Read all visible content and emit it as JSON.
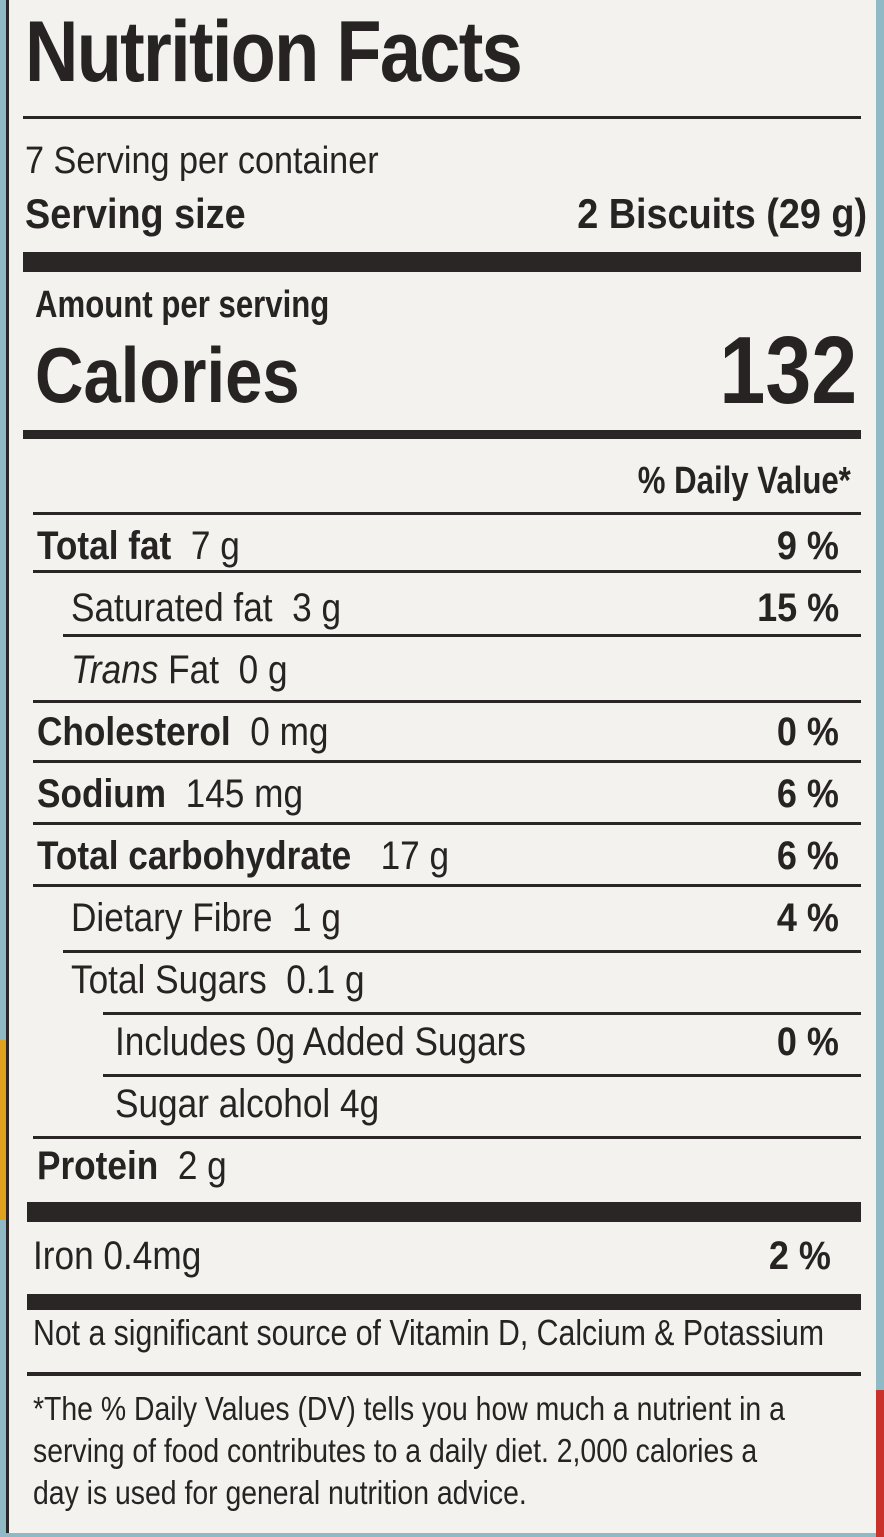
{
  "title": "Nutrition Facts",
  "servings_per_container": "7 Serving per container",
  "serving_size": {
    "label": "Serving size",
    "value": "2 Biscuits (29 g)"
  },
  "amount_per_serving": "Amount per serving",
  "calories": {
    "label": "Calories",
    "value": "132"
  },
  "daily_value_header": "% Daily Value*",
  "nutrients": [
    {
      "name": "Total fat",
      "amount": "7 g",
      "dv": "9 %"
    },
    {
      "name": "Saturated fat",
      "amount": "3 g",
      "dv": "15 %"
    },
    {
      "name": "Trans",
      "name_rest": "Fat",
      "amount": "0 g",
      "dv": ""
    },
    {
      "name": "Cholesterol",
      "amount": "0 mg",
      "dv": "0 %"
    },
    {
      "name": "Sodium",
      "amount": "145 mg",
      "dv": "6 %"
    },
    {
      "name": "Total carbohydrate",
      "amount": "17 g",
      "dv": "6 %"
    },
    {
      "name": "Dietary Fibre",
      "amount": "1 g",
      "dv": "4 %"
    },
    {
      "name": "Total Sugars",
      "amount": "0.1 g",
      "dv": ""
    },
    {
      "name": "Includes 0g Added Sugars",
      "amount": "",
      "dv": "0 %"
    },
    {
      "name": "Sugar alcohol 4g",
      "amount": "",
      "dv": ""
    },
    {
      "name": "Protein",
      "amount": "2 g",
      "dv": ""
    }
  ],
  "iron": {
    "label": "Iron 0.4mg",
    "dv": "2 %"
  },
  "not_significant": "Not a significant source of Vitamin D, Calcium & Potassium",
  "footnote": [
    "*The % Daily Values (DV) tells you how much a nutrient in a",
    "serving of food contributes to a daily diet. 2,000 calories a",
    "day is used for general nutrition advice."
  ]
}
